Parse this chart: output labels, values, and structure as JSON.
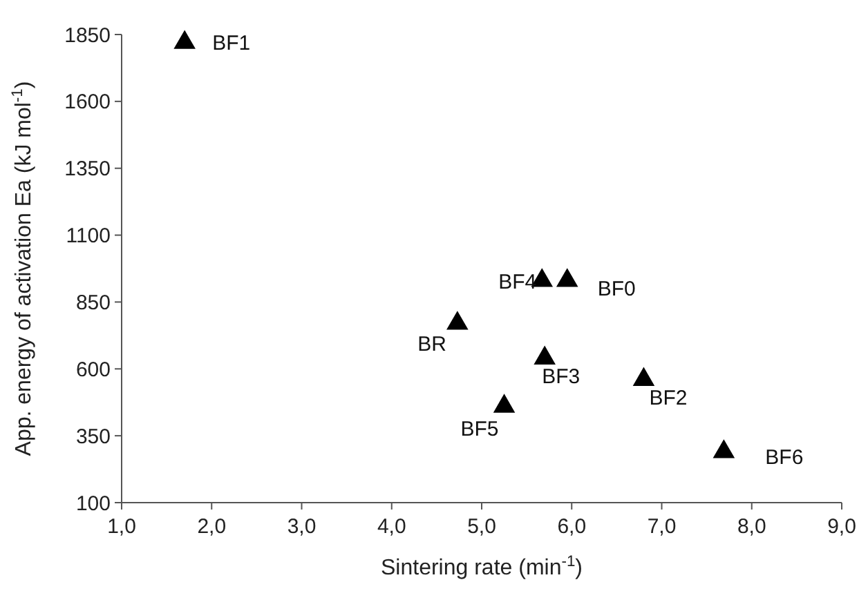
{
  "chart_data": {
    "type": "scatter",
    "xlabel": "Sintering rate  (min$^{-1}$)",
    "ylabel": "App. energy of activation Ea (kJ mol$^{-1}$)",
    "x": [
      1.7,
      5.67,
      5.95,
      4.73,
      5.7,
      6.8,
      5.25,
      7.69
    ],
    "values": [
      1820,
      930,
      930,
      770,
      640,
      560,
      460,
      290
    ],
    "color": "#000000",
    "marker": "triangle",
    "grid": false,
    "xlim": [
      1,
      9
    ],
    "xticks": [
      {
        "value": 1,
        "label": "1,0"
      },
      {
        "value": 2,
        "label": "2,0"
      },
      {
        "value": 3,
        "label": "3,0"
      },
      {
        "value": 4,
        "label": "4,0"
      },
      {
        "value": 5,
        "label": "5,0"
      },
      {
        "value": 6,
        "label": "6,0"
      },
      {
        "value": 7,
        "label": "7,0"
      },
      {
        "value": 8,
        "label": "8,0"
      },
      {
        "value": 9,
        "label": "9,0"
      }
    ],
    "ylim": [
      100,
      1850
    ],
    "yticks": [
      100,
      350,
      600,
      850,
      1100,
      1350,
      1600,
      1850
    ],
    "annotations": [
      {
        "text": "BF1",
        "x": 1.7,
        "y": 1820
      },
      {
        "text": "BF4",
        "x": 5.67,
        "y": 930
      },
      {
        "text": "BF0",
        "x": 5.95,
        "y": 930
      },
      {
        "text": "BR",
        "x": 4.73,
        "y": 770
      },
      {
        "text": "BF3",
        "x": 5.7,
        "y": 640
      },
      {
        "text": "BF2",
        "x": 6.8,
        "y": 560
      },
      {
        "text": "BF5",
        "x": 5.25,
        "y": 460
      },
      {
        "text": "BF6",
        "x": 7.69,
        "y": 290
      }
    ]
  }
}
